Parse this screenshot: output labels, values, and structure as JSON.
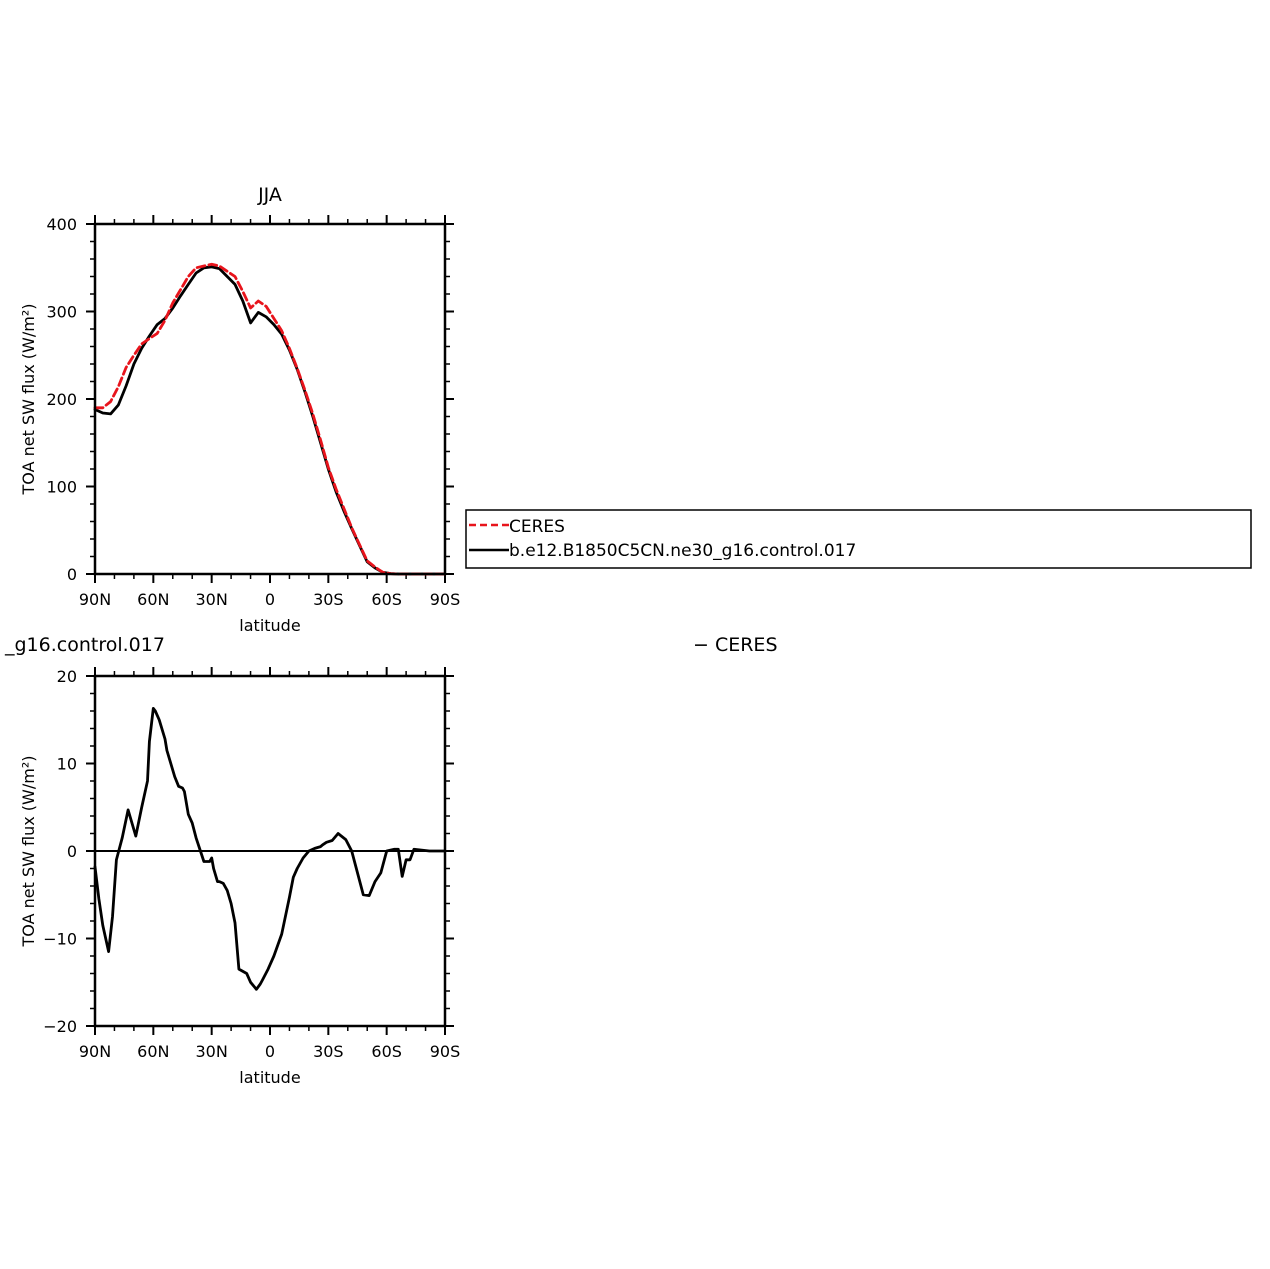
{
  "chart_data": [
    {
      "type": "line",
      "title": "JJA",
      "xlabel": "latitude",
      "ylabel": "TOA net SW flux (W/m²)",
      "xlim": [
        90,
        -90
      ],
      "ylim": [
        0,
        400
      ],
      "xticks": [
        90,
        60,
        30,
        0,
        -30,
        -60,
        -90
      ],
      "xtick_labels": [
        "90N",
        "60N",
        "30N",
        "0",
        "30S",
        "60S",
        "90S"
      ],
      "yticks": [
        0,
        100,
        200,
        300,
        400
      ],
      "ytick_labels": [
        "0",
        "100",
        "200",
        "300",
        "400"
      ],
      "grid": false,
      "legend": {
        "placement": "right",
        "entries": [
          {
            "label": "CERES",
            "color": "#e8141c",
            "style": "dashed"
          },
          {
            "label": "b.e12.B1850C5CN.ne30_g16.control.017",
            "color": "#000000",
            "style": "solid"
          }
        ]
      },
      "series": [
        {
          "name": "CERES",
          "color": "#e8141c",
          "style": "dashed",
          "x": [
            90,
            86,
            82,
            78,
            74,
            70,
            66,
            62,
            58,
            54,
            50,
            46,
            42,
            38,
            34,
            30,
            26,
            22,
            18,
            14,
            10,
            6,
            2,
            -2,
            -6,
            -10,
            -14,
            -18,
            -22,
            -26,
            -30,
            -34,
            -38,
            -42,
            -46,
            -50,
            -54,
            -58,
            -62,
            -66,
            -70,
            -74,
            -78,
            -82,
            -86,
            -90
          ],
          "y": [
            190,
            190,
            197,
            214,
            236,
            250,
            263,
            269,
            275,
            290,
            310,
            325,
            340,
            350,
            352,
            354,
            352,
            346,
            340,
            323,
            304,
            312,
            306,
            292,
            278,
            258,
            235,
            210,
            183,
            153,
            122,
            97,
            75,
            53,
            34,
            15,
            8,
            2,
            0.5,
            0,
            0,
            0,
            0,
            0,
            0,
            0
          ]
        },
        {
          "name": "b.e12.B1850C5CN.ne30_g16.control.017",
          "color": "#000000",
          "style": "solid",
          "x": [
            90,
            86,
            82,
            78,
            74,
            70,
            66,
            62,
            58,
            54,
            50,
            46,
            42,
            38,
            34,
            30,
            26,
            22,
            18,
            14,
            10,
            6,
            2,
            -2,
            -6,
            -10,
            -14,
            -18,
            -22,
            -26,
            -30,
            -34,
            -38,
            -42,
            -46,
            -50,
            -54,
            -58,
            -62,
            -66,
            -70,
            -74,
            -78,
            -82,
            -86,
            -90
          ],
          "y": [
            188,
            184,
            183,
            193,
            215,
            240,
            258,
            272,
            285,
            292,
            304,
            318,
            331,
            344,
            350,
            351,
            349,
            340,
            331,
            312,
            287,
            299,
            294,
            285,
            274,
            256,
            234,
            208,
            180,
            150,
            120,
            94,
            72,
            52,
            33,
            14,
            7,
            2,
            0.5,
            0,
            0,
            0,
            0,
            0,
            0,
            0
          ]
        }
      ]
    },
    {
      "type": "line",
      "title": "_g16.control.017",
      "title_right": "− CERES",
      "xlabel": "latitude",
      "ylabel": "TOA net SW flux (W/m²)",
      "xlim": [
        90,
        -90
      ],
      "ylim": [
        -20,
        20
      ],
      "xticks": [
        90,
        60,
        30,
        0,
        -30,
        -60,
        -90
      ],
      "xtick_labels": [
        "90N",
        "60N",
        "30N",
        "0",
        "30S",
        "60S",
        "90S"
      ],
      "yticks": [
        -20,
        -10,
        0,
        10,
        20
      ],
      "ytick_labels": [
        "−20",
        "−10",
        "0",
        "10",
        "20"
      ],
      "grid": false,
      "series": [
        {
          "color": "#000000",
          "style": "solid",
          "x": [
            90,
            88,
            86,
            83,
            81,
            79,
            76,
            73,
            69,
            66,
            63,
            62,
            60,
            59,
            57,
            54,
            53,
            51,
            49,
            47,
            45,
            44,
            42,
            40,
            38,
            34,
            33,
            31,
            30,
            29,
            27,
            26,
            24,
            22,
            20,
            18,
            16,
            12,
            10,
            7,
            5,
            4,
            1,
            -2,
            -6,
            -10,
            -12,
            -14,
            -17,
            -20,
            -23,
            -26,
            -27,
            -29,
            -32,
            -35,
            -39,
            -42,
            -45,
            -48,
            -51,
            -54,
            -57,
            -60,
            -64,
            -66,
            -68,
            -70,
            -72,
            -74,
            -78,
            -82,
            -86,
            -90
          ],
          "y": [
            -1.8,
            -5.5,
            -8.5,
            -11.5,
            -7.5,
            -1,
            1.5,
            4.7,
            1.7,
            5,
            8,
            12.5,
            16.3,
            16,
            15,
            12.8,
            11.5,
            10,
            8.5,
            7.4,
            7.2,
            6.8,
            4.2,
            3.2,
            1.5,
            -1.2,
            -1.2,
            -1.2,
            -0.8,
            -2,
            -3.5,
            -3.5,
            -3.7,
            -4.5,
            -6,
            -8.2,
            -13.5,
            -14,
            -15,
            -15.8,
            -15.2,
            -14.8,
            -13.5,
            -12,
            -9.5,
            -5.3,
            -3,
            -2,
            -0.8,
            0,
            0.3,
            0.5,
            0.7,
            1,
            1.2,
            2,
            1.3,
            0,
            -2.5,
            -5,
            -5.1,
            -3.5,
            -2.5,
            0,
            0.2,
            0.2,
            -2.9,
            -1,
            -1,
            0.2,
            0.1,
            0,
            0,
            0
          ]
        }
      ]
    }
  ]
}
